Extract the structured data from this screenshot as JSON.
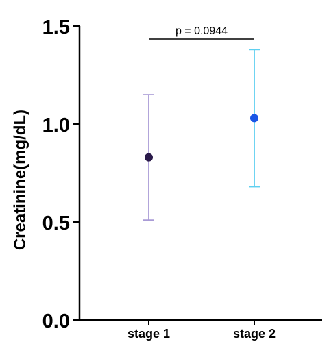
{
  "chart_data": {
    "type": "scatter",
    "title": "",
    "xlabel": "",
    "ylabel": "Creatinine(mg/dL)",
    "ylim": [
      0,
      1.5
    ],
    "yticks": [
      "0.0",
      "0.5",
      "1.0",
      "1.5"
    ],
    "ytick_values": [
      0,
      0.5,
      1.0,
      1.5
    ],
    "categories": [
      "stage 1",
      "stage 2"
    ],
    "series": [
      {
        "values": [
          0.83,
          1.03
        ],
        "error_low": [
          0.51,
          0.68
        ],
        "error_high": [
          1.15,
          1.38
        ],
        "colors": [
          "#2a1a4a",
          "#1a56e6"
        ],
        "errorbar_colors": [
          "#a99bd6",
          "#5fd0f0"
        ]
      }
    ],
    "annotation": {
      "text": "p = 0.0944",
      "y": 1.43
    },
    "grid": false
  }
}
